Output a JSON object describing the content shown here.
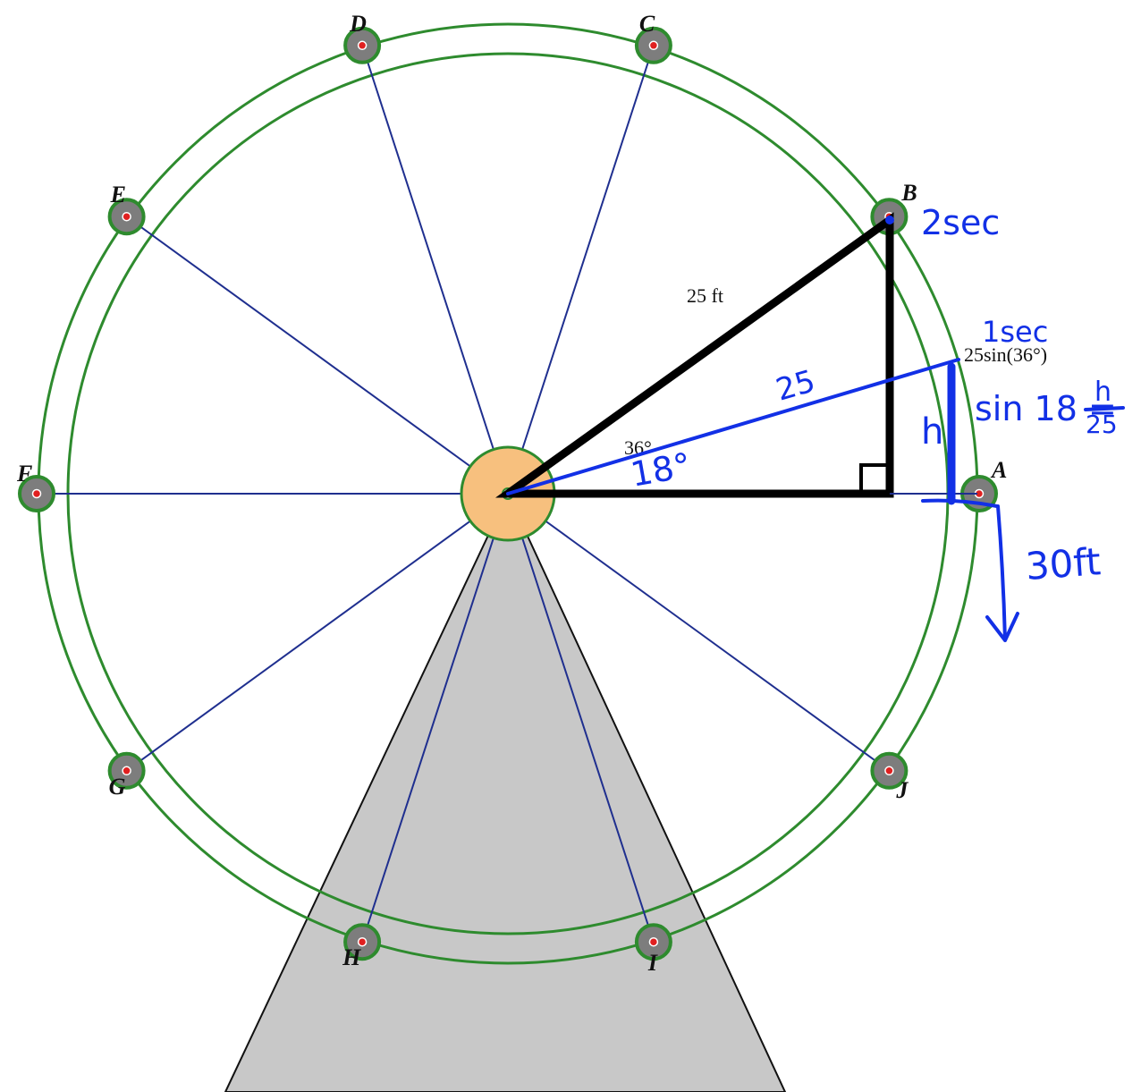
{
  "diagram": {
    "points": [
      {
        "id": "A",
        "label": "A",
        "angle_deg": 0
      },
      {
        "id": "B",
        "label": "B",
        "angle_deg": 36
      },
      {
        "id": "C",
        "label": "C",
        "angle_deg": 72
      },
      {
        "id": "D",
        "label": "D",
        "angle_deg": 108
      },
      {
        "id": "E",
        "label": "E",
        "angle_deg": 144
      },
      {
        "id": "F",
        "label": "F",
        "angle_deg": 180
      },
      {
        "id": "G",
        "label": "G",
        "angle_deg": 216
      },
      {
        "id": "H",
        "label": "H",
        "angle_deg": 252
      },
      {
        "id": "I",
        "label": "I",
        "angle_deg": 288
      },
      {
        "id": "J",
        "label": "J",
        "angle_deg": 324
      }
    ],
    "printed_labels": {
      "hypotenuse": "25 ft",
      "angle": "36°",
      "height_expr": "25sin(36°)"
    },
    "handwritten": {
      "b_time": "2sec",
      "mid_time": "1sec",
      "radius": "25",
      "angle": "18°",
      "height_var": "h",
      "equation_left": "sin 18 =",
      "equation_num": "h",
      "equation_den": "25",
      "drop": "30ft"
    },
    "colors": {
      "rim": "#2e8b2e",
      "spoke": "#1f2f8f",
      "hub": "#f7c07e",
      "stand": "#c8c8c8",
      "car": "#7d7d7d",
      "car_center": "#e02020",
      "triangle": "#000000",
      "ink": "#1230e6"
    }
  }
}
